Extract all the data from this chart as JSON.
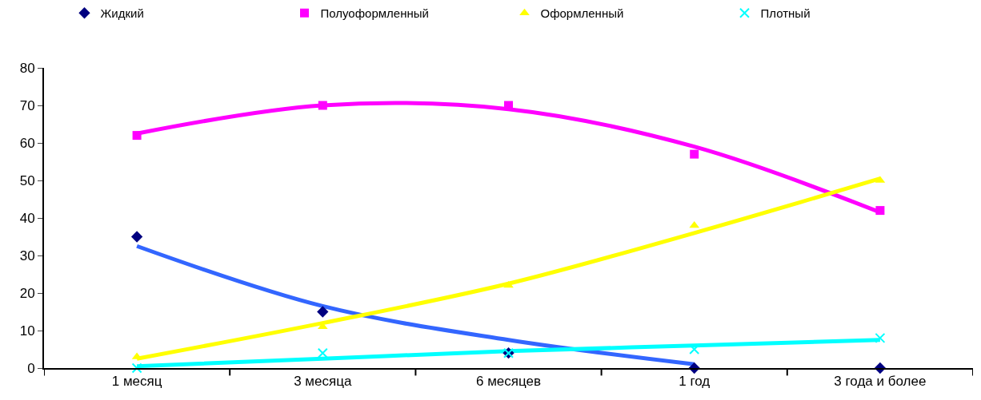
{
  "chart_data": {
    "type": "scatter",
    "categories": [
      "1 месяц",
      "3 месяца",
      "6 месяцев",
      "1 год",
      "3 года и более"
    ],
    "series": [
      {
        "name": "Жидкий",
        "color": "#000080",
        "marker": "diamond",
        "values": [
          35,
          15,
          4,
          0,
          0
        ]
      },
      {
        "name": "Полуоформленный",
        "color": "#ff00ff",
        "marker": "square",
        "values": [
          62,
          70,
          70,
          57,
          42
        ]
      },
      {
        "name": "Оформленный",
        "color": "#ffff00",
        "marker": "triangle",
        "values": [
          3,
          11,
          22,
          38,
          50
        ]
      },
      {
        "name": "Плотный",
        "color": "#00ffff",
        "marker": "cross",
        "values": [
          0,
          4,
          4,
          5,
          8
        ]
      },
      {
        "type": "line",
        "color": "#3366ff",
        "marker": "none",
        "values": [
          32.5,
          16.5,
          7.5,
          1,
          null
        ]
      },
      {
        "type": "line",
        "color": "#ff00ff",
        "marker": "none",
        "values": [
          62.5,
          70,
          69,
          59,
          41.5
        ]
      },
      {
        "type": "line",
        "color": "#ffff00",
        "marker": "none",
        "values": [
          2.5,
          12,
          22.5,
          36,
          50.5
        ]
      },
      {
        "type": "line",
        "color": "#00ffff",
        "marker": "none",
        "values": [
          0.5,
          2.5,
          4.5,
          6,
          7.5
        ]
      }
    ],
    "ylim": [
      0,
      80
    ],
    "yticks": [
      0,
      10,
      20,
      30,
      40,
      50,
      60,
      70,
      80
    ],
    "legend": "top"
  }
}
